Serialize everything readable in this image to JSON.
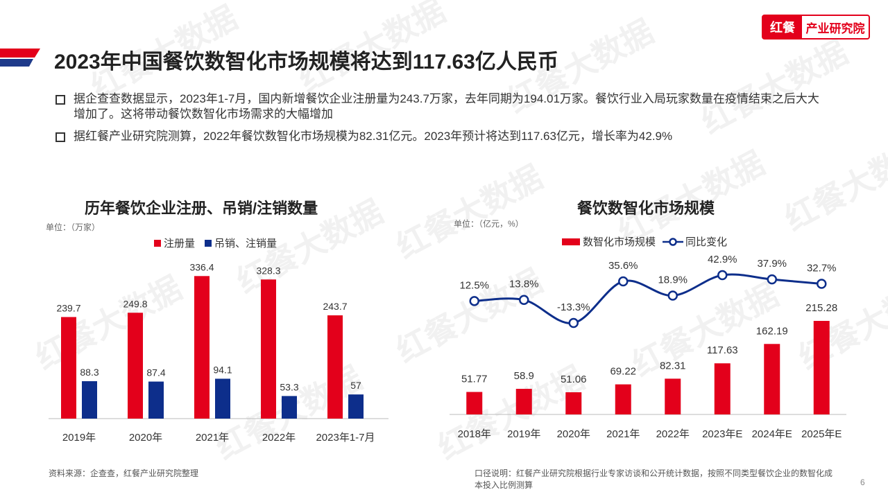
{
  "header": {
    "title": "2023年中国餐饮数智化市场规模将达到117.63亿人民币",
    "logo_mark": "红餐",
    "logo_text": "产业研究院"
  },
  "watermark_text": "红餐大数据",
  "bullets": [
    "据企查查数据显示，2023年1-7月，国内新增餐饮企业注册量为243.7万家，去年同期为194.01万家。餐饮行业入局玩家数量在疫情结束之后大大增加了。这将带动餐饮数智化市场需求的大幅增加",
    "据红餐产业研究院测算，2022年餐饮数智化市场规模为82.31亿元。2023年预计将达到117.63亿元，增长率为42.9%"
  ],
  "colors": {
    "red": "#e3001b",
    "blue": "#0d2e8b"
  },
  "chart_data": [
    {
      "type": "bar",
      "title": "历年餐饮企业注册、吊销/注销数量",
      "unit": "单位：（万家）",
      "categories": [
        "2019年",
        "2020年",
        "2021年",
        "2022年",
        "2023年1-7月"
      ],
      "series": [
        {
          "name": "注册量",
          "values": [
            239.7,
            249.8,
            336.4,
            328.3,
            243.7
          ],
          "color": "#e3001b"
        },
        {
          "name": "吊销、注销量",
          "values": [
            88.3,
            87.4,
            94.1,
            53.3,
            57
          ],
          "color": "#0d2e8b"
        }
      ],
      "ylim": [
        0,
        350
      ],
      "legend": "top-center"
    },
    {
      "type": "bar+line",
      "title": "餐饮数智化市场规模",
      "unit": "单位：（亿元，%）",
      "categories": [
        "2018年",
        "2019年",
        "2020年",
        "2021年",
        "2022年",
        "2023年E",
        "2024年E",
        "2025年E"
      ],
      "series": [
        {
          "name": "数智化市场规模",
          "type": "bar",
          "values": [
            51.77,
            58.9,
            51.06,
            69.22,
            82.31,
            117.63,
            162.19,
            215.28
          ],
          "color": "#e3001b"
        },
        {
          "name": "同比变化",
          "type": "line",
          "values": [
            12.5,
            13.8,
            -13.3,
            35.6,
            18.9,
            42.9,
            37.9,
            32.7
          ],
          "labels": [
            "12.5%",
            "13.8%",
            "-13.3%",
            "35.6%",
            "18.9%",
            "42.9%",
            "37.9%",
            "32.7%"
          ],
          "color": "#0d2e8b"
        }
      ],
      "legend": "top-center"
    }
  ],
  "footer": {
    "source": "资料来源：企查查，红餐产业研究院整理",
    "note": "口径说明：红餐产业研究院根据行业专家访谈和公开统计数据，按照不同类型餐饮企业的数智化成本投入比例测算",
    "page": "6"
  }
}
